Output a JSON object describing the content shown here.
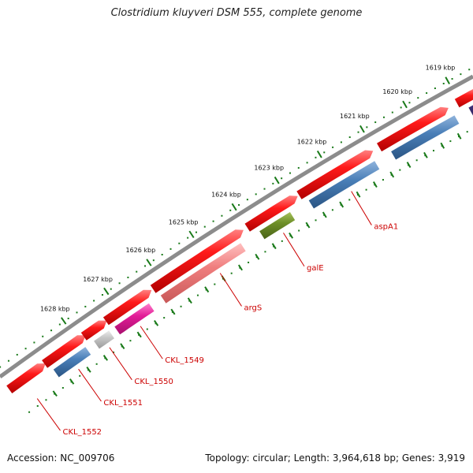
{
  "title": "Clostridium kluyveri DSM 555, complete genome",
  "accession": "Accession: NC_009706",
  "summary": "Topology: circular; Length: 3,964,618 bp; Genes: 3,919",
  "ruler_labels": [
    "1619 kbp",
    "1620 kbp",
    "1621 kbp",
    "1622 kbp",
    "1623 kbp",
    "1624 kbp",
    "1625 kbp",
    "1626 kbp",
    "1627 kbp",
    "1628 kbp"
  ],
  "gene_labels": [
    "aspA1",
    "galE",
    "argS",
    "CKL_1549",
    "CKL_1550",
    "CKL_1551",
    "CKL_1552"
  ],
  "colors": {
    "backbone": "#8c8c8c",
    "cds": "#ff0000",
    "ruler": "#1a7a1a",
    "label": "#cc0000",
    "blue": "#4a7fb8",
    "olive": "#6e8f28",
    "salmon": "#f07e7e",
    "magenta": "#e21c97",
    "grey": "#c6c6c6",
    "purple": "#4b3a8c"
  }
}
